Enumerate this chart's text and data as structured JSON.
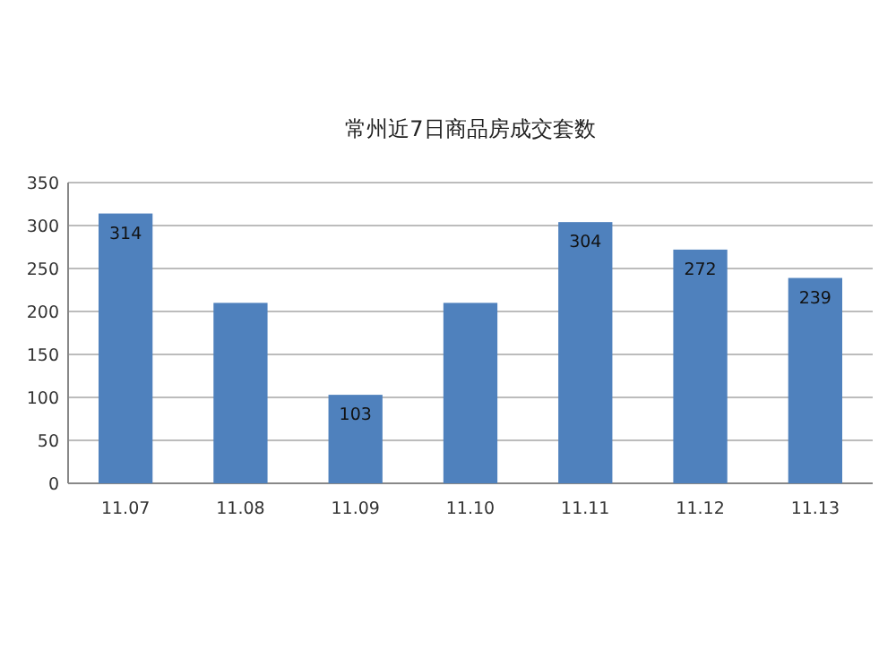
{
  "chart_data": {
    "type": "bar",
    "title": "常州近7日商品房成交套数",
    "categories": [
      "11.07",
      "11.08",
      "11.09",
      "11.10",
      "11.11",
      "11.12",
      "11.13"
    ],
    "values": [
      314,
      210,
      103,
      210,
      304,
      272,
      239
    ],
    "value_labels": [
      "314",
      null,
      "103",
      null,
      "304",
      "272",
      "239"
    ],
    "color": "#4f81bd",
    "ylim": [
      0,
      350
    ],
    "yticks": [
      0,
      50,
      100,
      150,
      200,
      250,
      300,
      350
    ],
    "grid": "y",
    "legend": false
  }
}
